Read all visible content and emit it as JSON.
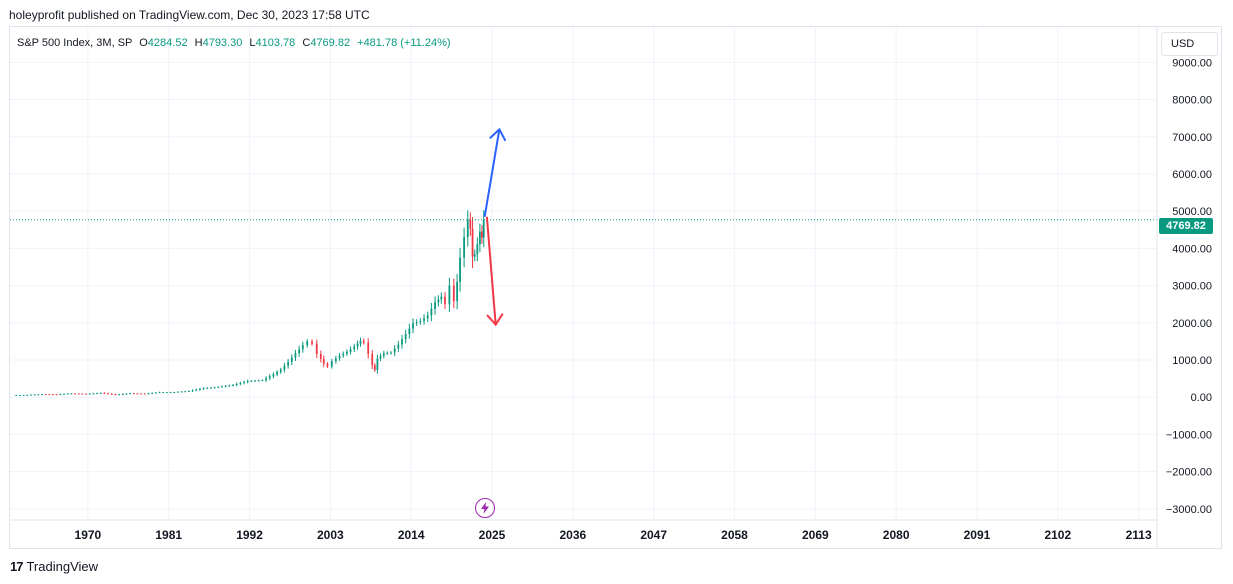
{
  "header": {
    "published": "holeyprofit published on TradingView.com, Dec 30, 2023 17:58 UTC"
  },
  "legend": {
    "symbol": "S&P 500 Index, 3M, SP",
    "o_label": "O",
    "o_value": "4284.52",
    "h_label": "H",
    "h_value": "4793.30",
    "l_label": "L",
    "l_value": "4103.78",
    "c_label": "C",
    "c_value": "4769.82",
    "change": "+481.78 (+11.24%)"
  },
  "currency_button": "USD",
  "last_price_label": "4769.82",
  "footer": {
    "logo_glyph": "17",
    "brand": "TradingView"
  },
  "colors": {
    "up": "#089981",
    "down": "#f23645",
    "arrow_up": "#2962ff",
    "arrow_down": "#f23645",
    "grid": "#f0f3fa",
    "event_icon": "#9c27b0"
  },
  "icons": [
    "lightning-bolt-icon",
    "tradingview-logo-icon"
  ],
  "chart_data": {
    "type": "candlestick",
    "title": "S&P 500 Index, 3M, SP",
    "x_ticks": [
      "1970",
      "1981",
      "1992",
      "2003",
      "2014",
      "2025",
      "2036",
      "2047",
      "2058",
      "2069",
      "2080",
      "2091",
      "2102",
      "2113"
    ],
    "x_range": [
      1959.4,
      2115.5
    ],
    "y_ticks": [
      "9000.00",
      "8000.00",
      "7000.00",
      "6000.00",
      "5000.00",
      "4000.00",
      "3000.00",
      "2000.00",
      "1000.00",
      "0.00",
      "−1000.00",
      "−2000.00",
      "−3000.00"
    ],
    "y_tick_values": [
      9000,
      8000,
      7000,
      6000,
      5000,
      4000,
      3000,
      2000,
      1000,
      0,
      -1000,
      -2000,
      -3000
    ],
    "ylim": [
      -3300,
      9950
    ],
    "last_price": 4769.82,
    "series_close": [
      [
        1960,
        58
      ],
      [
        1962,
        63
      ],
      [
        1964,
        84
      ],
      [
        1966,
        80
      ],
      [
        1968,
        103
      ],
      [
        1970,
        92
      ],
      [
        1972,
        118
      ],
      [
        1974,
        69
      ],
      [
        1976,
        107
      ],
      [
        1978,
        96
      ],
      [
        1980,
        135
      ],
      [
        1982,
        140
      ],
      [
        1984,
        167
      ],
      [
        1986,
        242
      ],
      [
        1988,
        277
      ],
      [
        1990,
        330
      ],
      [
        1992,
        435
      ],
      [
        1994,
        460
      ],
      [
        1995.5,
        615
      ],
      [
        1996.5,
        740
      ],
      [
        1997.5,
        950
      ],
      [
        1998.5,
        1180
      ],
      [
        1999.5,
        1400
      ],
      [
        2000.2,
        1500
      ],
      [
        2000.8,
        1440
      ],
      [
        2001.5,
        1160
      ],
      [
        2002.3,
        900
      ],
      [
        2002.9,
        830
      ],
      [
        2003.5,
        970
      ],
      [
        2004.5,
        1120
      ],
      [
        2005.5,
        1220
      ],
      [
        2006.5,
        1360
      ],
      [
        2007.3,
        1520
      ],
      [
        2007.8,
        1470
      ],
      [
        2008.5,
        1160
      ],
      [
        2008.9,
        860
      ],
      [
        2009.2,
        735
      ],
      [
        2009.6,
        1040
      ],
      [
        2010.5,
        1180
      ],
      [
        2011.5,
        1200
      ],
      [
        2012.5,
        1420
      ],
      [
        2013.5,
        1700
      ],
      [
        2014.5,
        1990
      ],
      [
        2015.5,
        2050
      ],
      [
        2016.5,
        2200
      ],
      [
        2017.5,
        2550
      ],
      [
        2018.3,
        2700
      ],
      [
        2018.9,
        2500
      ],
      [
        2019.5,
        3000
      ],
      [
        2020.1,
        2580
      ],
      [
        2020.4,
        3100
      ],
      [
        2020.9,
        3750
      ],
      [
        2021.5,
        4300
      ],
      [
        2021.9,
        4770
      ],
      [
        2022.2,
        4530
      ],
      [
        2022.5,
        3780
      ],
      [
        2022.8,
        3840
      ],
      [
        2023.2,
        4110
      ],
      [
        2023.5,
        4450
      ],
      [
        2023.75,
        4290
      ],
      [
        2023.99,
        4770
      ]
    ],
    "annotations": [
      {
        "type": "arrow",
        "direction": "up",
        "from": [
          2024.0,
          4850
        ],
        "to": [
          2026.0,
          7200
        ]
      },
      {
        "type": "arrow",
        "direction": "down",
        "from": [
          2024.3,
          4850
        ],
        "to": [
          2025.5,
          1950
        ]
      }
    ]
  }
}
